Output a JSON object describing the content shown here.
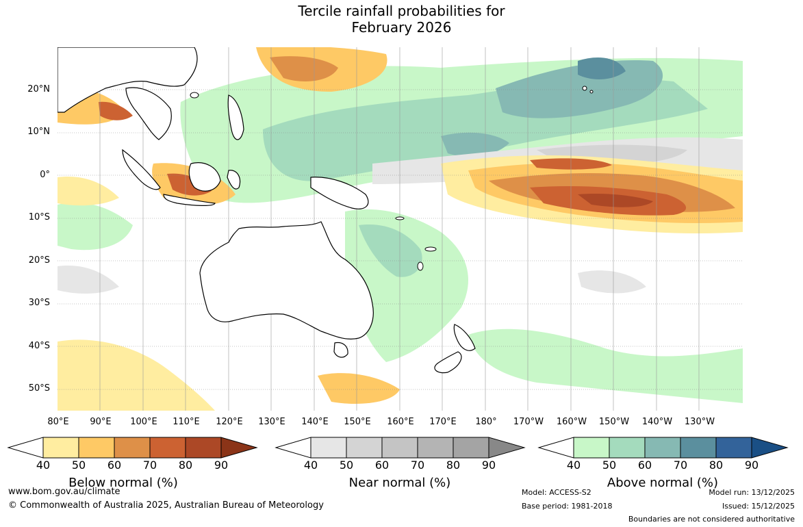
{
  "title_line1": "Tercile rainfall probabilities for",
  "title_line2": "February 2026",
  "lat_labels": [
    "20°N",
    "10°N",
    "0°",
    "10°S",
    "20°S",
    "30°S",
    "40°S",
    "50°S"
  ],
  "lon_labels": [
    "80°E",
    "90°E",
    "100°E",
    "110°E",
    "120°E",
    "130°E",
    "140°E",
    "150°E",
    "160°E",
    "170°E",
    "180°",
    "170°W",
    "160°W",
    "150°W",
    "140°W",
    "130°W"
  ],
  "colorbars": [
    {
      "title": "Below normal (%)",
      "ticks": [
        "40",
        "50",
        "60",
        "70",
        "80",
        "90"
      ],
      "colors": [
        "#ffeda0",
        "#fec965",
        "#de9048",
        "#cc6232",
        "#ac4826",
        "#8b3418"
      ]
    },
    {
      "title": "Near normal (%)",
      "ticks": [
        "40",
        "50",
        "60",
        "70",
        "80",
        "90"
      ],
      "colors": [
        "#e6e6e6",
        "#d4d4d4",
        "#c4c4c4",
        "#b4b4b4",
        "#a4a4a4",
        "#888888"
      ]
    },
    {
      "title": "Above normal (%)",
      "ticks": [
        "40",
        "50",
        "60",
        "70",
        "80",
        "90"
      ],
      "colors": [
        "#c8f7c8",
        "#a4dbbd",
        "#86b9b3",
        "#5b8f9e",
        "#33639a",
        "#1a4f85"
      ]
    }
  ],
  "footer": {
    "website": "www.bom.gov.au/climate",
    "copyright": "© Commonwealth of Australia 2025, Australian Bureau of Meteorology",
    "model": "Model: ACCESS-S2",
    "base_period": "Base period: 1981-2018",
    "model_run": "Model run: 13/12/2025",
    "issued": "Issued: 15/12/2025",
    "boundaries": "Boundaries are not considered authoritative"
  }
}
